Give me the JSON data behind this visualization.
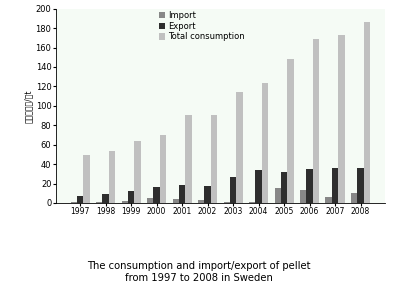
{
  "years": [
    "1997",
    "1998",
    "1999",
    "2000",
    "2001",
    "2002",
    "2003",
    "2004",
    "2005",
    "2006",
    "2007",
    "2008"
  ],
  "import": [
    1,
    1,
    2,
    5,
    4,
    3,
    1,
    1,
    15,
    13,
    6,
    10
  ],
  "export": [
    7,
    9,
    12,
    16,
    19,
    17,
    27,
    34,
    32,
    35,
    36,
    36
  ],
  "total_consumption": [
    49,
    54,
    64,
    70,
    91,
    91,
    114,
    124,
    148,
    169,
    173,
    186
  ],
  "colors": {
    "import": "#878787",
    "export": "#2e2e2e",
    "total_consumption": "#c0c0c0"
  },
  "ylabel": "颜粒燃料量/万t",
  "ylim": [
    0,
    200
  ],
  "yticks": [
    0,
    20,
    40,
    60,
    80,
    100,
    120,
    140,
    160,
    180,
    200
  ],
  "title_line1": "The consumption and import/export of pellet",
  "title_line2": "from 1997 to 2008 in Sweden",
  "legend_labels": [
    "Import",
    "Export",
    "Total consumption"
  ],
  "background_color": "#ffffff",
  "bar_width": 0.25
}
